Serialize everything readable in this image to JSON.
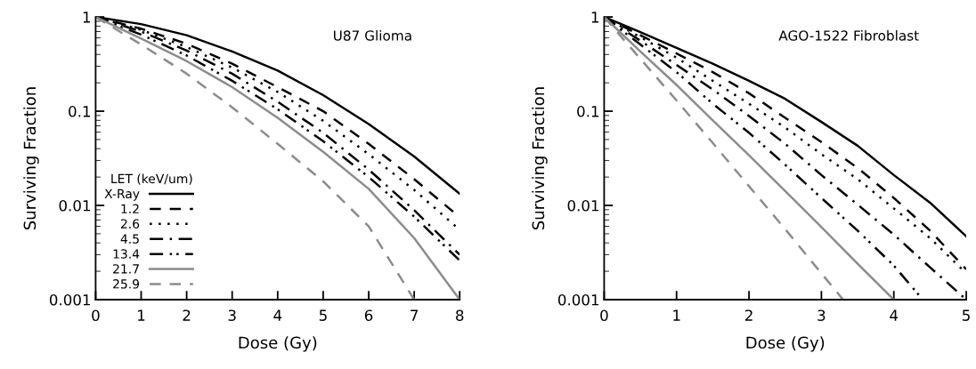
{
  "chart_data": [
    {
      "type": "line",
      "title": "U87 Glioma",
      "xlabel": "Dose (Gy)",
      "ylabel": "Surviving Fraction",
      "log": true,
      "xlim": [
        0,
        8
      ],
      "xticks": [
        0,
        1,
        2,
        3,
        4,
        5,
        6,
        7,
        8
      ],
      "ylim": [
        0.001,
        1
      ],
      "yticks": [
        1,
        0.1,
        0.01,
        0.001
      ],
      "grid": false,
      "legend": "bottom left",
      "legend_title": "LET (keV/um)",
      "series": [
        {
          "name": "X-Ray",
          "color": "#000000",
          "line_style": "solid",
          "x": [
            0,
            1,
            2,
            3,
            4,
            5,
            6,
            7,
            8
          ],
          "values": [
            1,
            0.84,
            0.64,
            0.43,
            0.27,
            0.148,
            0.073,
            0.033,
            0.0133
          ]
        },
        {
          "name": "1.2",
          "color": "#000000",
          "line_style": "dashed",
          "x": [
            0,
            1,
            2,
            3,
            4,
            5,
            6,
            7,
            8
          ],
          "values": [
            1,
            0.75,
            0.52,
            0.32,
            0.18,
            0.1,
            0.045,
            0.019,
            0.0075
          ]
        },
        {
          "name": "2.6",
          "color": "#000000",
          "line_style": "dotted",
          "x": [
            0,
            1,
            2,
            3,
            4,
            5,
            6,
            7,
            8
          ],
          "values": [
            1,
            0.73,
            0.48,
            0.29,
            0.16,
            0.079,
            0.035,
            0.0146,
            0.0055
          ]
        },
        {
          "name": "4.5",
          "color": "#000000",
          "line_style": "dashdot",
          "x": [
            0,
            1,
            2,
            3,
            4,
            5,
            6,
            7,
            8
          ],
          "values": [
            1,
            0.7,
            0.44,
            0.25,
            0.126,
            0.059,
            0.024,
            0.0089,
            0.003
          ]
        },
        {
          "name": "13.4",
          "color": "#000000",
          "line_style": "dashdotdot",
          "x": [
            0,
            1,
            2,
            3,
            4,
            5,
            6,
            7,
            8
          ],
          "values": [
            1,
            0.65,
            0.39,
            0.21,
            0.105,
            0.048,
            0.02,
            0.0076,
            0.0026
          ]
        },
        {
          "name": "21.7",
          "color": "#8c8c8c",
          "line_style": "solid",
          "x": [
            0,
            1,
            2,
            3,
            4,
            5,
            6,
            7,
            8
          ],
          "values": [
            1,
            0.59,
            0.34,
            0.18,
            0.085,
            0.037,
            0.015,
            0.0045,
            0.001
          ]
        },
        {
          "name": "25.9",
          "color": "#8c8c8c",
          "line_style": "dashed",
          "x": [
            0,
            1,
            2,
            3,
            4,
            5,
            6,
            7
          ],
          "values": [
            1,
            0.51,
            0.25,
            0.11,
            0.045,
            0.018,
            0.006,
            0.001
          ]
        }
      ]
    },
    {
      "type": "line",
      "title": "AGO-1522 Fibroblast",
      "xlabel": "Dose (Gy)",
      "ylabel": "Surviving Fraction",
      "log": true,
      "xlim": [
        0,
        5
      ],
      "xticks": [
        0,
        1,
        2,
        3,
        4,
        5
      ],
      "ylim": [
        0.001,
        1
      ],
      "yticks": [
        1,
        0.1,
        0.01,
        0.001
      ],
      "grid": false,
      "series": [
        {
          "color": "#000000",
          "line_style": "solid",
          "x": [
            0,
            0.5,
            1,
            1.5,
            2,
            2.5,
            3,
            3.5,
            4,
            4.5,
            5
          ],
          "values": [
            1,
            0.69,
            0.47,
            0.32,
            0.21,
            0.135,
            0.077,
            0.043,
            0.021,
            0.0107,
            0.0047
          ]
        },
        {
          "color": "#000000",
          "line_style": "dashed",
          "x": [
            0,
            0.5,
            1,
            1.5,
            2,
            2.5,
            3,
            3.5,
            4,
            4.5,
            5
          ],
          "values": [
            1,
            0.64,
            0.41,
            0.26,
            0.155,
            0.085,
            0.047,
            0.025,
            0.012,
            0.0054,
            0.0021
          ]
        },
        {
          "color": "#000000",
          "line_style": "dotted",
          "x": [
            0,
            0.5,
            1,
            1.5,
            2,
            2.5,
            3,
            3.5,
            4,
            4.5,
            5
          ],
          "values": [
            1,
            0.61,
            0.37,
            0.21,
            0.12,
            0.067,
            0.035,
            0.019,
            0.0093,
            0.0045,
            0.0019
          ]
        },
        {
          "color": "#000000",
          "line_style": "dashdot",
          "x": [
            0,
            0.5,
            1,
            1.5,
            2,
            2.5,
            3,
            3.5,
            4,
            4.5,
            5
          ],
          "values": [
            1,
            0.56,
            0.31,
            0.17,
            0.089,
            0.045,
            0.021,
            0.0102,
            0.0049,
            0.0022,
            0.001
          ]
        },
        {
          "color": "#000000",
          "line_style": "dashdotdot",
          "x": [
            0,
            0.5,
            1,
            1.5,
            2,
            2.5,
            3,
            3.5,
            4,
            4.4
          ],
          "values": [
            1,
            0.51,
            0.26,
            0.12,
            0.059,
            0.027,
            0.012,
            0.0054,
            0.0023,
            0.001
          ]
        },
        {
          "color": "#8c8c8c",
          "line_style": "solid",
          "x": [
            0,
            0.5,
            1,
            1.5,
            2,
            2.5,
            3,
            3.5,
            4
          ],
          "values": [
            1,
            0.43,
            0.19,
            0.08,
            0.034,
            0.0142,
            0.0059,
            0.0024,
            0.001
          ]
        },
        {
          "color": "#8c8c8c",
          "line_style": "dashed",
          "x": [
            0,
            0.5,
            1,
            1.5,
            2,
            2.5,
            3,
            3.3
          ],
          "values": [
            1,
            0.36,
            0.13,
            0.046,
            0.016,
            0.0056,
            0.0019,
            0.001
          ]
        }
      ]
    }
  ]
}
